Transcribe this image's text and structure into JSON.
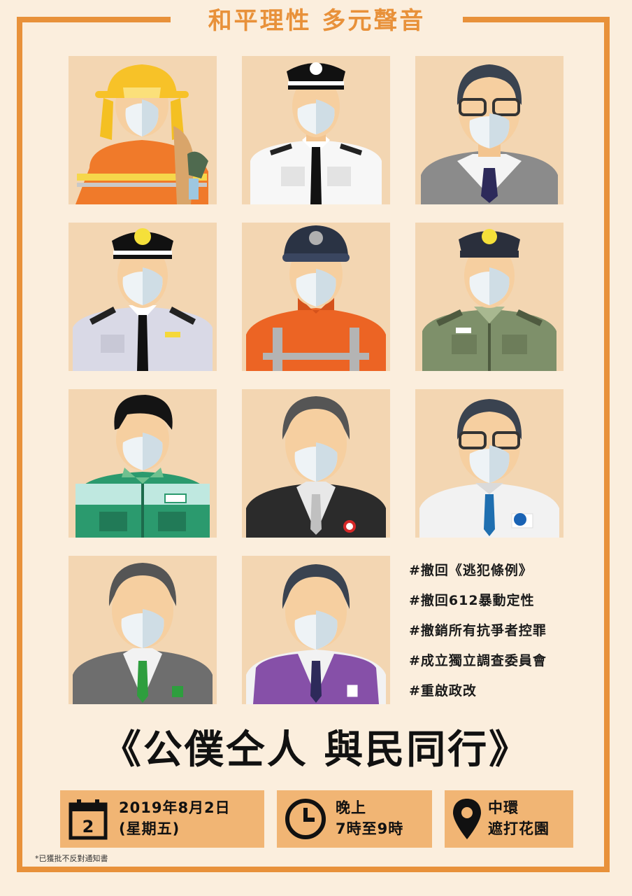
{
  "header": {
    "title": "和平理性 多元聲音"
  },
  "tiles": [
    {
      "role": "firefighter"
    },
    {
      "role": "officer-white"
    },
    {
      "role": "civil-servant-glasses"
    },
    {
      "role": "officer-gray"
    },
    {
      "role": "ambulance-worker"
    },
    {
      "role": "officer-green"
    },
    {
      "role": "worker-green"
    },
    {
      "role": "staff-suit-r"
    },
    {
      "role": "staff-glasses-w"
    },
    {
      "role": "staff-suit-green-tie"
    },
    {
      "role": "staff-purple-vest"
    }
  ],
  "slogans": [
    "#撤回《逃犯條例》",
    "#撤回612暴動定性",
    "#撤銷所有抗爭者控罪",
    "#成立獨立調查委員會",
    "#重啟政改"
  ],
  "headline": "《公僕仝人 與民同行》",
  "info": {
    "date_line1": "2019年8月2日",
    "date_line2": "(星期五)",
    "calendar_day": "2",
    "time_line1": "晚上",
    "time_line2": "7時至9時",
    "place_line1": "中環",
    "place_line2": "遮打花園"
  },
  "note": "*已獲批不反對通知書",
  "colors": {
    "accent": "#e8913a",
    "background": "#fbeedd",
    "tile": "#f3d6b2",
    "info_box": "#f1b574"
  }
}
